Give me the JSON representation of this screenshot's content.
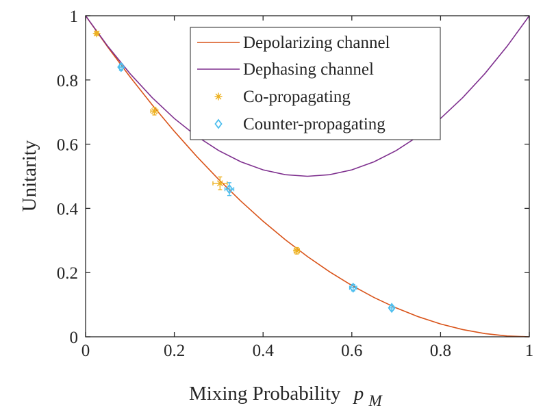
{
  "chart_data": {
    "type": "line",
    "xlabel": "Mixing Probability",
    "xlabel_symbol": "p",
    "xlabel_subscript": "M",
    "ylabel": "Unitarity",
    "xlim": [
      0,
      1
    ],
    "ylim": [
      0,
      1
    ],
    "xticks": [
      "0",
      "0.2",
      "0.4",
      "0.6",
      "0.8",
      "1"
    ],
    "yticks": [
      "0",
      "0.2",
      "0.4",
      "0.6",
      "0.8",
      "1"
    ],
    "grid": false,
    "legend_position": "top-right",
    "series": [
      {
        "name": "Depolarizing channel",
        "kind": "curve",
        "formula": "(1 - p)^2",
        "color": "#D95319",
        "x": [
          0,
          0.05,
          0.1,
          0.15,
          0.2,
          0.25,
          0.3,
          0.35,
          0.4,
          0.45,
          0.5,
          0.55,
          0.6,
          0.65,
          0.7,
          0.75,
          0.8,
          0.85,
          0.9,
          0.95,
          1
        ],
        "y": [
          1,
          0.9025,
          0.81,
          0.7225,
          0.64,
          0.5625,
          0.49,
          0.4225,
          0.36,
          0.3025,
          0.25,
          0.2025,
          0.16,
          0.1225,
          0.09,
          0.0625,
          0.04,
          0.0225,
          0.01,
          0.0025,
          0
        ]
      },
      {
        "name": "Dephasing channel",
        "kind": "curve",
        "formula": "1 - 2p + 2p^2",
        "color": "#7E2F8E",
        "x": [
          0,
          0.05,
          0.1,
          0.15,
          0.2,
          0.25,
          0.3,
          0.35,
          0.4,
          0.45,
          0.5,
          0.55,
          0.6,
          0.65,
          0.7,
          0.75,
          0.8,
          0.85,
          0.9,
          0.95,
          1
        ],
        "y": [
          1,
          0.905,
          0.82,
          0.745,
          0.68,
          0.625,
          0.58,
          0.545,
          0.52,
          0.505,
          0.5,
          0.505,
          0.52,
          0.545,
          0.58,
          0.625,
          0.68,
          0.745,
          0.82,
          0.905,
          1
        ]
      },
      {
        "name": "Co-propagating",
        "kind": "points",
        "marker": "asterisk",
        "color": "#EDB120",
        "points": [
          {
            "x": 0.025,
            "y": 0.945,
            "xerr": 0.004,
            "yerr": 0.006
          },
          {
            "x": 0.155,
            "y": 0.703,
            "xerr": 0.008,
            "yerr": 0.012
          },
          {
            "x": 0.303,
            "y": 0.478,
            "xerr": 0.016,
            "yerr": 0.02
          },
          {
            "x": 0.476,
            "y": 0.268,
            "xerr": 0.006,
            "yerr": 0.01
          }
        ]
      },
      {
        "name": "Counter-propagating",
        "kind": "points",
        "marker": "diamond",
        "color": "#4DBEEE",
        "points": [
          {
            "x": 0.08,
            "y": 0.84,
            "xerr": 0.004,
            "yerr": 0.01
          },
          {
            "x": 0.324,
            "y": 0.46,
            "xerr": 0.01,
            "yerr": 0.02
          },
          {
            "x": 0.603,
            "y": 0.153,
            "xerr": 0.008,
            "yerr": 0.01
          },
          {
            "x": 0.69,
            "y": 0.09,
            "xerr": 0.005,
            "yerr": 0.007
          }
        ]
      }
    ]
  }
}
